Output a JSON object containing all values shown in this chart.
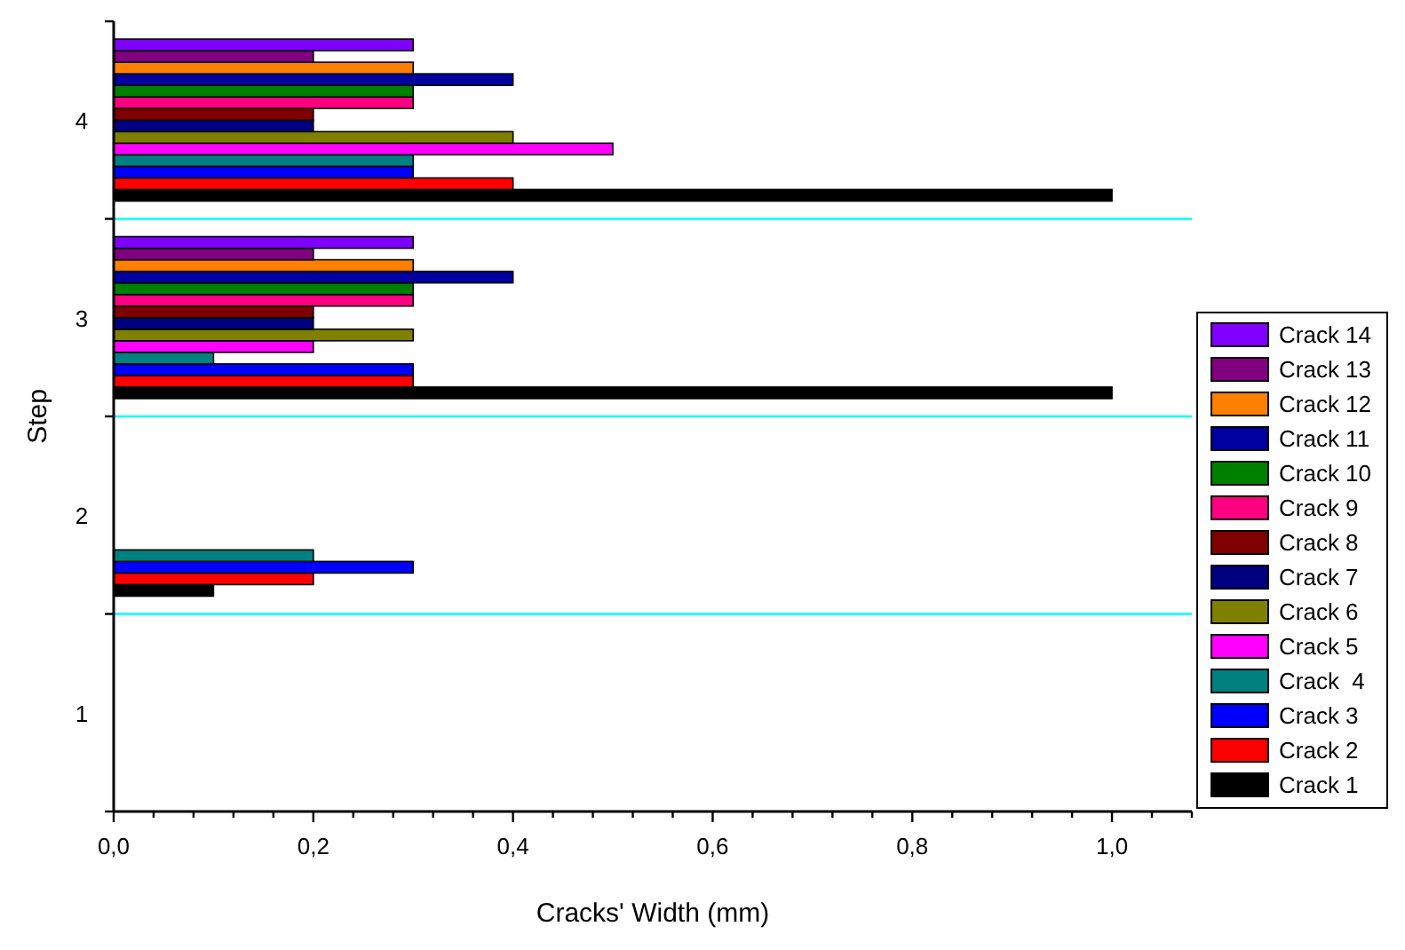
{
  "chart_data": {
    "type": "bar",
    "orientation": "horizontal",
    "xlabel": "Cracks' Width (mm)",
    "ylabel": "Step",
    "categories": [
      "4",
      "3",
      "2",
      "1"
    ],
    "xlim": [
      0,
      1.08
    ],
    "xticks": [
      {
        "value": 0,
        "label": "0,0"
      },
      {
        "value": 0.04,
        "label": null
      },
      {
        "value": 0.08,
        "label": null
      },
      {
        "value": 0.12,
        "label": null
      },
      {
        "value": 0.16,
        "label": null
      },
      {
        "value": 0.2,
        "label": "0,2"
      },
      {
        "value": 0.24,
        "label": null
      },
      {
        "value": 0.28,
        "label": null
      },
      {
        "value": 0.32,
        "label": null
      },
      {
        "value": 0.36,
        "label": null
      },
      {
        "value": 0.4,
        "label": "0,4"
      },
      {
        "value": 0.44,
        "label": null
      },
      {
        "value": 0.48,
        "label": null
      },
      {
        "value": 0.52,
        "label": null
      },
      {
        "value": 0.56,
        "label": null
      },
      {
        "value": 0.6,
        "label": "0,6"
      },
      {
        "value": 0.64,
        "label": null
      },
      {
        "value": 0.68,
        "label": null
      },
      {
        "value": 0.72,
        "label": null
      },
      {
        "value": 0.76,
        "label": null
      },
      {
        "value": 0.8,
        "label": "0,8"
      },
      {
        "value": 0.84,
        "label": null
      },
      {
        "value": 0.88,
        "label": null
      },
      {
        "value": 0.92,
        "label": null
      },
      {
        "value": 0.96,
        "label": null
      },
      {
        "value": 1,
        "label": "1,0"
      },
      {
        "value": 1.04,
        "label": null
      },
      {
        "value": 1.08,
        "label": null
      }
    ],
    "legend": "right",
    "grid": false,
    "series": [
      {
        "name": "Crack 1",
        "color": "#000000",
        "values": [
          1.0,
          1.0,
          0.1,
          null
        ]
      },
      {
        "name": "Crack 2",
        "color": "#ff0000",
        "values": [
          0.4,
          0.3,
          0.2,
          null
        ]
      },
      {
        "name": "Crack 3",
        "color": "#0000ff",
        "values": [
          0.3,
          0.3,
          0.3,
          null
        ]
      },
      {
        "name": "Crack  4",
        "color": "#008080",
        "values": [
          0.3,
          0.1,
          0.2,
          null
        ]
      },
      {
        "name": "Crack 5",
        "color": "#ff00ff",
        "values": [
          0.5,
          0.2,
          null,
          null
        ]
      },
      {
        "name": "Crack 6",
        "color": "#808000",
        "values": [
          0.4,
          0.3,
          null,
          null
        ]
      },
      {
        "name": "Crack 7",
        "color": "#000080",
        "values": [
          0.2,
          0.2,
          null,
          null
        ]
      },
      {
        "name": "Crack 8",
        "color": "#800000",
        "values": [
          0.2,
          0.2,
          null,
          null
        ]
      },
      {
        "name": "Crack 9",
        "color": "#ff0080",
        "values": [
          0.3,
          0.3,
          null,
          null
        ]
      },
      {
        "name": "Crack 10",
        "color": "#008000",
        "values": [
          0.3,
          0.3,
          null,
          null
        ]
      },
      {
        "name": "Crack 11",
        "color": "#0000a0",
        "values": [
          0.4,
          0.4,
          null,
          null
        ]
      },
      {
        "name": "Crack 12",
        "color": "#ff8000",
        "values": [
          0.3,
          0.3,
          null,
          null
        ]
      },
      {
        "name": "Crack 13",
        "color": "#800080",
        "values": [
          0.2,
          0.2,
          null,
          null
        ]
      },
      {
        "name": "Crack 14",
        "color": "#8000ff",
        "values": [
          0.3,
          0.3,
          null,
          null
        ]
      }
    ]
  }
}
